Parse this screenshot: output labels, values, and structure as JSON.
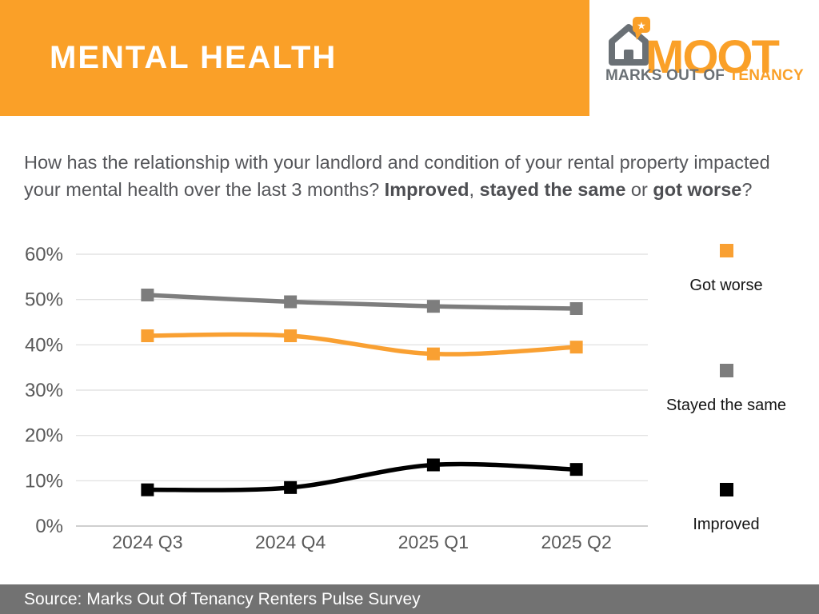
{
  "header": {
    "title": "MENTAL HEALTH",
    "bg_color": "#FAA028",
    "title_color": "#FFFFFF"
  },
  "logo": {
    "acronym": "MOOT",
    "tagline_prefix": "MARKS OUT OF ",
    "tagline_suffix": "TENANCY",
    "orange": "#FAA028",
    "gray": "#6A7075",
    "house_icon": "house-with-location-pin",
    "star_glyph": "★"
  },
  "question": {
    "segments": [
      {
        "text": "How has the relationship with your landlord and condition of your rental property impacted",
        "bold": false
      },
      {
        "br": true
      },
      {
        "text": "your mental health over the last 3 months? ",
        "bold": false
      },
      {
        "text": "Improved",
        "bold": true
      },
      {
        "text": ", ",
        "bold": false
      },
      {
        "text": "stayed the same",
        "bold": true
      },
      {
        "text": " or ",
        "bold": false
      },
      {
        "text": "got worse",
        "bold": true
      },
      {
        "text": "?",
        "bold": false
      }
    ]
  },
  "chart_data": {
    "type": "line",
    "categories": [
      "2024 Q3",
      "2024 Q4",
      "2025 Q1",
      "2025 Q2"
    ],
    "series": [
      {
        "name": "Got worse",
        "color": "#F9A032",
        "values": [
          42,
          42,
          38,
          39.5
        ]
      },
      {
        "name": "Stayed the same",
        "color": "#7D7D7D",
        "values": [
          51,
          49.5,
          48.5,
          48
        ]
      },
      {
        "name": "Improved",
        "color": "#000000",
        "values": [
          8,
          8.5,
          13.5,
          12.5
        ]
      }
    ],
    "ylim": [
      0,
      60
    ],
    "ytick_step": 10,
    "ytick_suffix": "%",
    "grid": true,
    "smooth": true,
    "marker": "square",
    "legend_position": "right",
    "axis_label_color": "#595959",
    "grid_color": "#DEDEDE",
    "baseline_color": "#BFBFBF"
  },
  "footer": {
    "source": "Source: Marks Out Of Tenancy Renters Pulse Survey",
    "bg_color": "#727272",
    "text_color": "#FFFFFF"
  }
}
